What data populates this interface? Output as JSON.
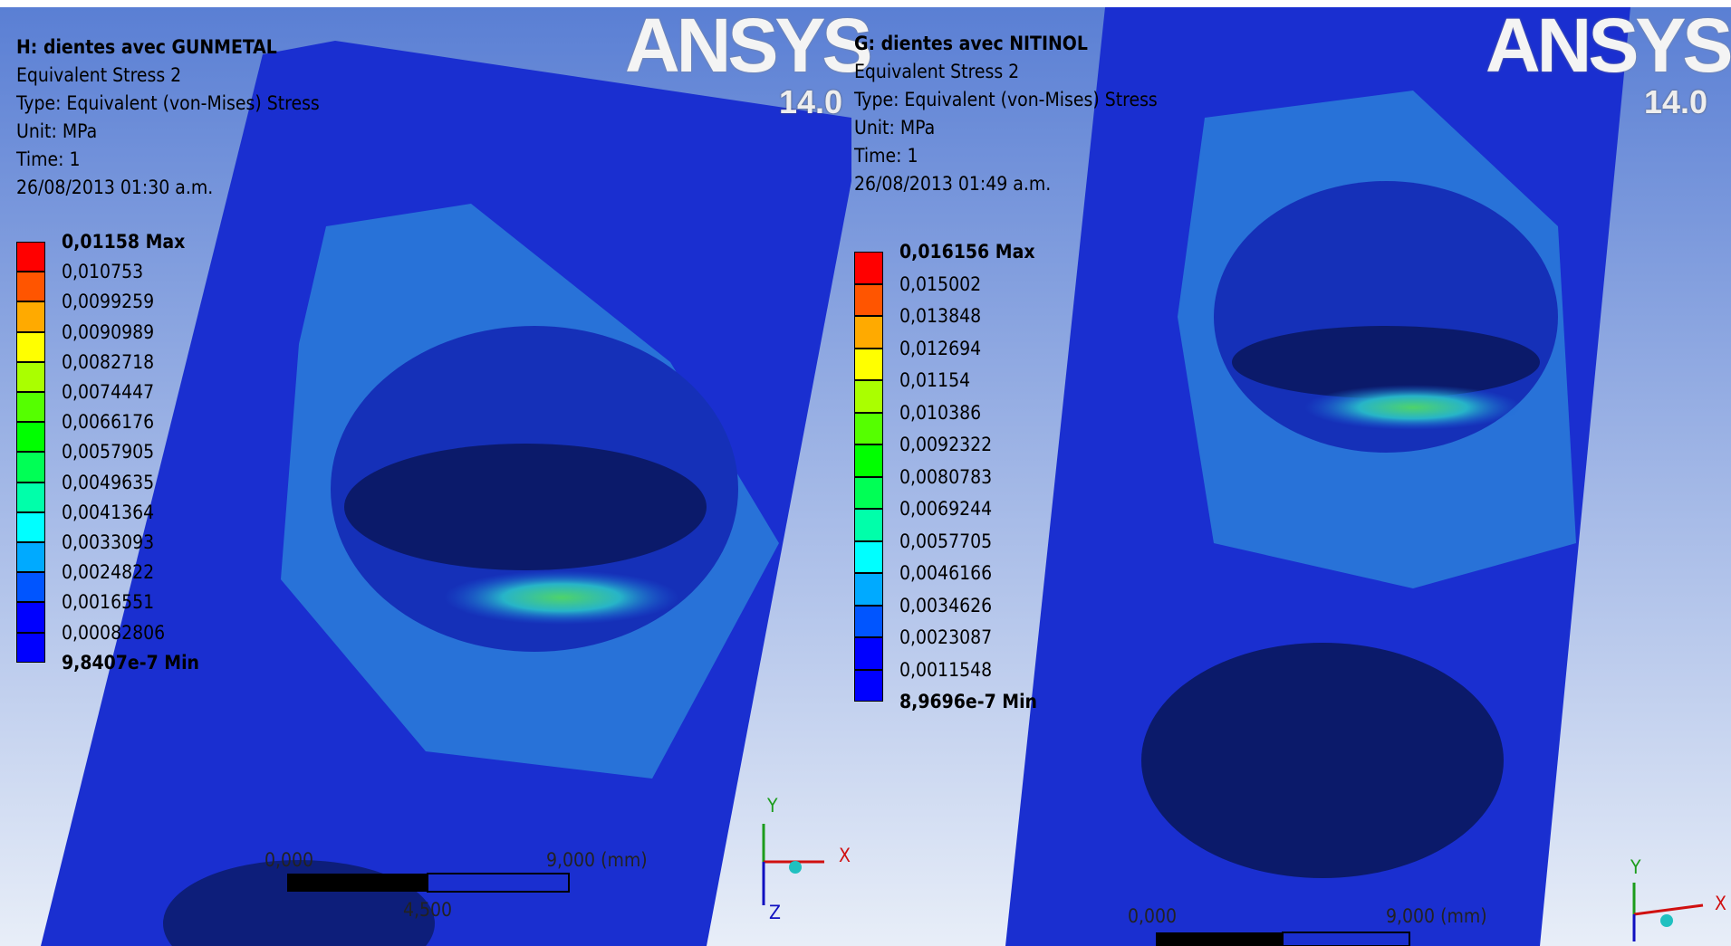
{
  "panels": [
    {
      "title": "H: dientes avec GUNMETAL",
      "result": "Equivalent Stress 2",
      "type": "Type: Equivalent (von-Mises) Stress",
      "unit": "Unit: MPa",
      "time": "Time: 1",
      "date": "26/08/2013 01:30 a.m.",
      "legend": [
        "0,01158 Max",
        "0,010753",
        "0,0099259",
        "0,0090989",
        "0,0082718",
        "0,0074447",
        "0,0066176",
        "0,0057905",
        "0,0049635",
        "0,0041364",
        "0,0033093",
        "0,0024822",
        "0,0016551",
        "0,00082806",
        "9,8407e-7 Min"
      ],
      "logo": "ANSYS",
      "version": "14.0",
      "scale_labels": [
        "0,000",
        "9,000 (mm)",
        "4,500"
      ],
      "axes": [
        "Y",
        "X",
        "Z"
      ]
    },
    {
      "title": "G: dientes avec NITINOL",
      "result": "Equivalent Stress 2",
      "type": "Type: Equivalent (von-Mises) Stress",
      "unit": "Unit: MPa",
      "time": "Time: 1",
      "date": "26/08/2013 01:49 a.m.",
      "legend": [
        "0,016156 Max",
        "0,015002",
        "0,013848",
        "0,012694",
        "0,01154",
        "0,010386",
        "0,0092322",
        "0,0080783",
        "0,0069244",
        "0,0057705",
        "0,0046166",
        "0,0034626",
        "0,0023087",
        "0,0011548",
        "8,9696e-7 Min"
      ],
      "logo": "ANSYS",
      "version": "14.0",
      "scale_labels": [
        "0,000",
        "9,000 (mm)"
      ],
      "axes": [
        "Y",
        "X"
      ]
    }
  ]
}
